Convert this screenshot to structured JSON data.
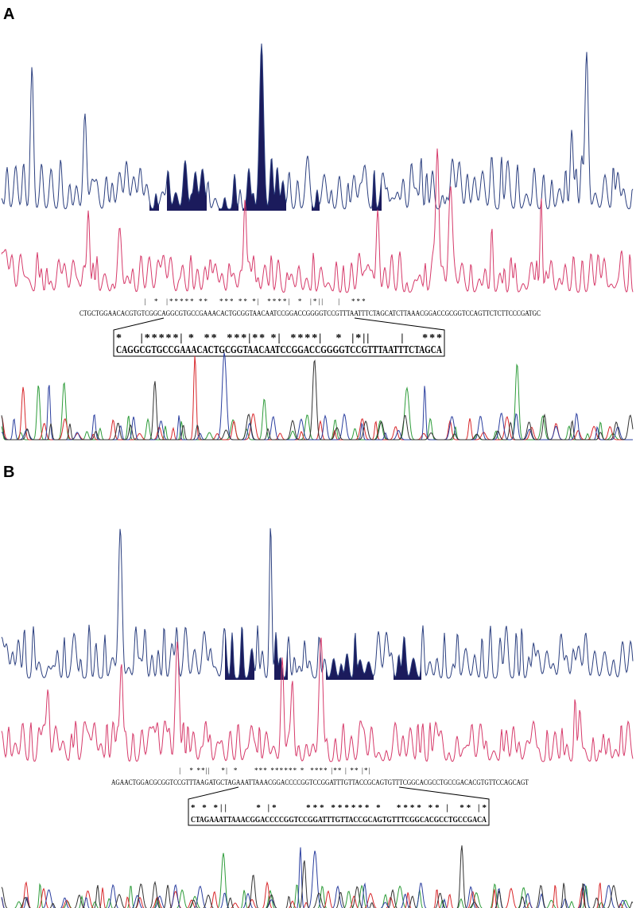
{
  "panels": [
    {
      "label": "A",
      "sequence": "CTGCTGGAACACGTGTCGGCAGGCGTGCCGAAACACTGCGGTAACAATCCGGACCGGGGTCCGTTTAATTTCTAGCATCTTAAACGGACCGCGGTCCAGTTCTCTTCCCGATGC",
      "sequence_markers": "                   |  *  |***** **   *** ** *|  ****|  *  |*||    |   ***",
      "highlight": "CAGGCGTGCCGAAACACTGCGGTAACAATCCGGACCGGGGTCCGTTTAATTTCTAGCA",
      "highlight_markers": "*    |*****| *  **  ***|** *|  ****|   *  |*||       |    ***"
    },
    {
      "label": "B",
      "sequence": "AGAACTGGACGCGGTCCGTTTAAGATGCTAGAAATTAAACGGACCCCGGTCCGGATTTGTTACCGCAGTGTTTCGGCACGCCTGCCGACACGTGTTCCAGCAGT",
      "sequence_markers": "                         |   * **||    *|  *      *** ****** *  **** |** | ** |*|",
      "highlight": "CTAGAAATTAAACGGACCCCGGTCCGGATTTGTTACCGCAGTGTTTCGGCACGCCTGCCGACA",
      "highlight_markers": "* * *||      * |*      *** ****** *   **** ** |  ** |*"
    }
  ]
}
